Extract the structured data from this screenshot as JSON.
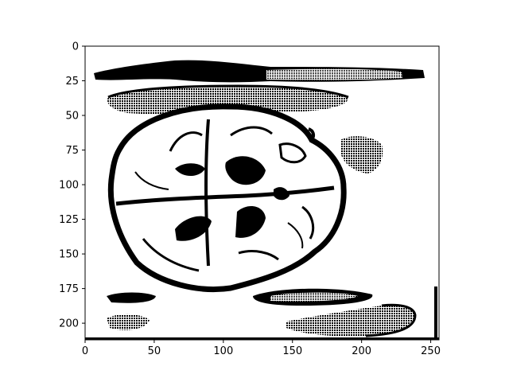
{
  "chart_data": {
    "type": "heatmap",
    "title": "",
    "xlabel": "",
    "ylabel": "",
    "image_description": "binary black-and-white image of a walnut-like shape with hatched horizontal blobs",
    "x_extent": [
      0,
      256
    ],
    "y_extent": [
      212,
      0
    ],
    "y_inverted": true,
    "x_ticks": [
      0,
      50,
      100,
      150,
      200,
      250
    ],
    "y_ticks": [
      0,
      25,
      50,
      75,
      100,
      125,
      150,
      175,
      200
    ],
    "grid": false,
    "legend": "none",
    "colors": {
      "foreground": "#000000",
      "background": "#ffffff"
    }
  }
}
